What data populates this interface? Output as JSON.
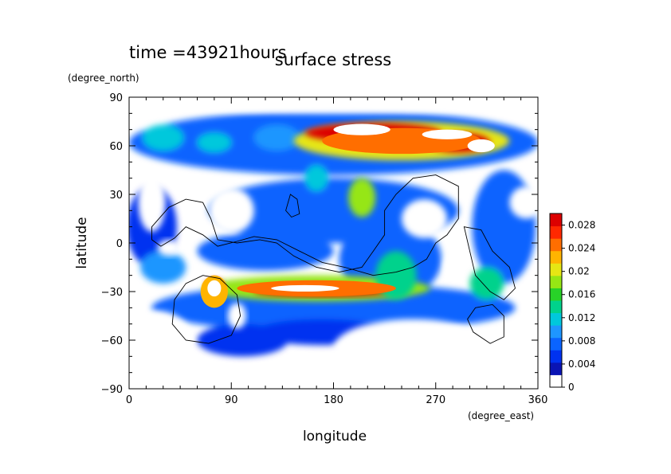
{
  "header": {
    "time_label": "time =43921hours",
    "title": "surface stress"
  },
  "chart_data": {
    "type": "heatmap",
    "title": "surface stress",
    "xlabel": "longitude",
    "ylabel": "latitude",
    "x_unit": "(degree_east)",
    "y_unit": "(degree_north)",
    "xlim": [
      0,
      360
    ],
    "ylim": [
      -90,
      90
    ],
    "x_ticks": [
      0,
      90,
      180,
      270,
      360
    ],
    "y_ticks": [
      -90,
      -60,
      -30,
      0,
      30,
      60,
      90
    ],
    "x_tick_labels": [
      "0",
      "90",
      "180",
      "270",
      "360"
    ],
    "y_tick_labels": [
      "−90",
      "−60",
      "−30",
      "0",
      "30",
      "60",
      "90"
    ],
    "colorbar": {
      "min": 0,
      "max": 0.03,
      "tick_values": [
        0,
        0.004,
        0.008,
        0.012,
        0.016,
        0.02,
        0.024,
        0.028
      ],
      "tick_labels": [
        "0",
        "0.004",
        "0.008",
        "0.012",
        "0.016",
        "0.02",
        "0.024",
        "0.028"
      ],
      "colors": [
        "#ffffff",
        "#0a14b4",
        "#0032f0",
        "#0a64ff",
        "#1e96ff",
        "#00c8dc",
        "#00d28c",
        "#28d228",
        "#96e614",
        "#e6e614",
        "#ffb400",
        "#ff6e00",
        "#ff2800",
        "#dc0000"
      ]
    },
    "features": [
      {
        "name": "northern-band",
        "lon": 240,
        "lat": 63,
        "rx": 95,
        "ry": 12,
        "value": 0.02
      },
      {
        "name": "northern-band-core",
        "lon": 215,
        "lat": 68,
        "rx": 60,
        "ry": 6,
        "value": 0.03
      },
      {
        "name": "northern-east-core",
        "lon": 290,
        "lat": 62,
        "rx": 28,
        "ry": 6,
        "value": 0.03
      },
      {
        "name": "southern-band",
        "lon": 165,
        "lat": -28,
        "rx": 100,
        "ry": 8,
        "value": 0.018
      },
      {
        "name": "southern-band-core",
        "lon": 170,
        "lat": -30,
        "rx": 60,
        "ry": 3,
        "value": 0.03
      },
      {
        "name": "southern-west-core",
        "lon": 75,
        "lat": -28,
        "rx": 8,
        "ry": 6,
        "value": 0.03
      },
      {
        "name": "central-patch",
        "lon": 205,
        "lat": 28,
        "rx": 12,
        "ry": 12,
        "value": 0.018
      },
      {
        "name": "central-pacific",
        "lon": 235,
        "lat": -20,
        "rx": 18,
        "ry": 15,
        "value": 0.013
      }
    ]
  }
}
